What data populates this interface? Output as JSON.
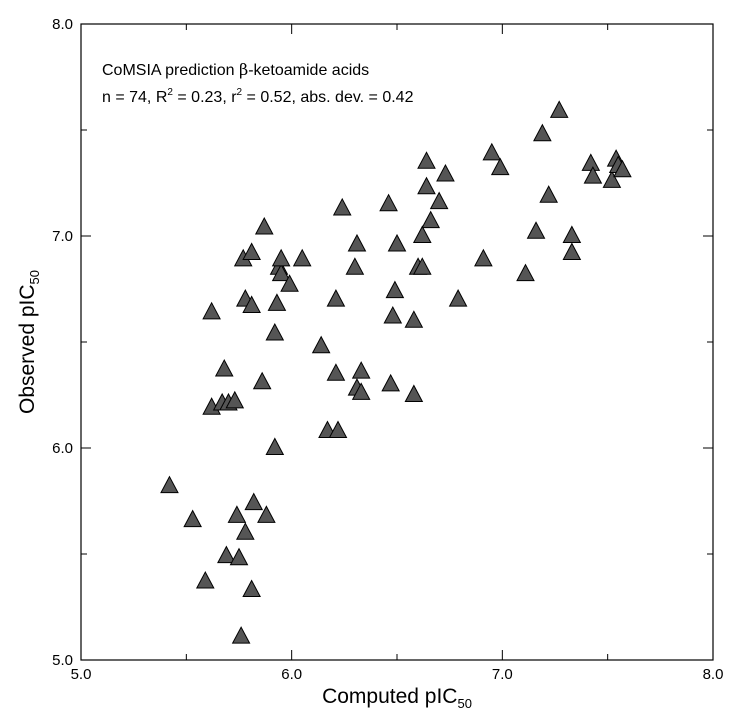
{
  "chart_data": {
    "type": "scatter",
    "title": "",
    "annotation_line1_pre": "CoMSIA prediction ",
    "annotation_line1_greek": "β",
    "annotation_line1_post": "-ketoamide acids",
    "annotation_line2": {
      "n_part": "n = 74, R",
      "sup1": "2",
      "mid_part": " = 0.23, r",
      "sup2": "2",
      "end_part": " = 0.52, abs. dev. = 0.42"
    },
    "xlabel_main": "Computed pIC",
    "xlabel_sub": "50",
    "ylabel_main": "Observed pIC",
    "ylabel_sub": "50",
    "xlim": [
      5.0,
      8.0
    ],
    "ylim": [
      5.0,
      8.0
    ],
    "xticks": [
      "5.0",
      "6.0",
      "7.0",
      "8.0"
    ],
    "yticks": [
      "5.0",
      "6.0",
      "7.0",
      "8.0"
    ],
    "grid": false,
    "marker": "triangle",
    "marker_color": "#555555",
    "points": [
      [
        5.42,
        5.82
      ],
      [
        5.53,
        5.66
      ],
      [
        5.59,
        5.37
      ],
      [
        5.62,
        6.64
      ],
      [
        5.62,
        6.19
      ],
      [
        5.67,
        6.21
      ],
      [
        5.68,
        6.37
      ],
      [
        5.69,
        5.49
      ],
      [
        5.7,
        6.21
      ],
      [
        5.73,
        6.22
      ],
      [
        5.74,
        5.68
      ],
      [
        5.75,
        5.48
      ],
      [
        5.76,
        5.11
      ],
      [
        5.77,
        6.89
      ],
      [
        5.78,
        5.6
      ],
      [
        5.78,
        6.7
      ],
      [
        5.81,
        6.92
      ],
      [
        5.81,
        6.67
      ],
      [
        5.81,
        5.33
      ],
      [
        5.82,
        5.74
      ],
      [
        5.86,
        6.31
      ],
      [
        5.87,
        7.04
      ],
      [
        5.88,
        5.68
      ],
      [
        5.92,
        6.54
      ],
      [
        5.92,
        6.0
      ],
      [
        5.93,
        6.68
      ],
      [
        5.94,
        6.85
      ],
      [
        5.95,
        6.82
      ],
      [
        5.95,
        6.89
      ],
      [
        5.99,
        6.77
      ],
      [
        6.05,
        6.89
      ],
      [
        6.14,
        6.48
      ],
      [
        6.17,
        6.08
      ],
      [
        6.21,
        6.35
      ],
      [
        6.21,
        6.7
      ],
      [
        6.22,
        6.08
      ],
      [
        6.24,
        7.13
      ],
      [
        6.3,
        6.85
      ],
      [
        6.31,
        6.28
      ],
      [
        6.31,
        6.96
      ],
      [
        6.33,
        6.26
      ],
      [
        6.33,
        6.36
      ],
      [
        6.46,
        7.15
      ],
      [
        6.47,
        6.3
      ],
      [
        6.48,
        6.62
      ],
      [
        6.49,
        6.74
      ],
      [
        6.5,
        6.96
      ],
      [
        6.58,
        6.6
      ],
      [
        6.58,
        6.25
      ],
      [
        6.6,
        6.85
      ],
      [
        6.62,
        7.0
      ],
      [
        6.62,
        6.85
      ],
      [
        6.64,
        7.35
      ],
      [
        6.64,
        7.23
      ],
      [
        6.66,
        7.07
      ],
      [
        6.7,
        7.16
      ],
      [
        6.73,
        7.29
      ],
      [
        6.79,
        6.7
      ],
      [
        6.91,
        6.89
      ],
      [
        6.95,
        7.39
      ],
      [
        6.99,
        7.32
      ],
      [
        7.11,
        6.82
      ],
      [
        7.16,
        7.02
      ],
      [
        7.19,
        7.48
      ],
      [
        7.22,
        7.19
      ],
      [
        7.27,
        7.59
      ],
      [
        7.33,
        7.0
      ],
      [
        7.33,
        6.92
      ],
      [
        7.42,
        7.34
      ],
      [
        7.43,
        7.28
      ],
      [
        7.52,
        7.26
      ],
      [
        7.54,
        7.36
      ],
      [
        7.55,
        7.33
      ],
      [
        7.57,
        7.31
      ]
    ]
  }
}
